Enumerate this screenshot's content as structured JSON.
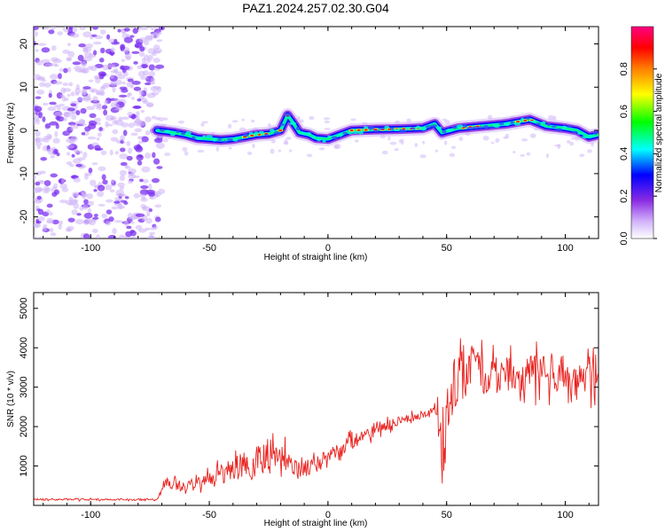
{
  "title": "PAZ1.2024.257.02.30.G04",
  "colors": {
    "snr_line": "#e8231f",
    "speckle": "#7b2ff0",
    "speckle_light": "#cdb3f7",
    "frame": "#000000"
  },
  "chart_data": [
    {
      "type": "heatmap",
      "title": "PAZ1.2024.257.02.30.G04",
      "xlabel": "Height of straight line (km)",
      "ylabel": "Frequency (Hz)",
      "xlim": [
        -124,
        114
      ],
      "ylim": [
        -25,
        24
      ],
      "x_ticks": [
        -100,
        -50,
        0,
        50,
        100
      ],
      "y_ticks": [
        -20,
        -10,
        0,
        10,
        20
      ],
      "colorbar": {
        "label": "Normalized spectral amplitude",
        "range": [
          0.0,
          1.0
        ],
        "ticks": [
          0.0,
          0.2,
          0.4,
          0.6,
          0.8
        ],
        "colormap": [
          "#ffffff",
          "#d2b4fa",
          "#8a2be2",
          "#0000ff",
          "#00ffff",
          "#00ff00",
          "#ffff00",
          "#ff8000",
          "#ff0000",
          "#ff0080"
        ]
      },
      "ridge_frequency": [
        {
          "x": -72,
          "y": 0.0
        },
        {
          "x": -65,
          "y": -0.5
        },
        {
          "x": -60,
          "y": -1.0
        },
        {
          "x": -55,
          "y": -1.8
        },
        {
          "x": -50,
          "y": -2.0
        },
        {
          "x": -45,
          "y": -2.2
        },
        {
          "x": -40,
          "y": -2.0
        },
        {
          "x": -35,
          "y": -1.5
        },
        {
          "x": -30,
          "y": -1.0
        },
        {
          "x": -25,
          "y": -0.8
        },
        {
          "x": -20,
          "y": 0.0
        },
        {
          "x": -17,
          "y": 3.5
        },
        {
          "x": -15,
          "y": 2.0
        },
        {
          "x": -12,
          "y": -0.5
        },
        {
          "x": -8,
          "y": -1.0
        },
        {
          "x": -5,
          "y": -1.8
        },
        {
          "x": 0,
          "y": -2.0
        },
        {
          "x": 5,
          "y": -1.0
        },
        {
          "x": 10,
          "y": 0.0
        },
        {
          "x": 20,
          "y": 0.2
        },
        {
          "x": 30,
          "y": 0.3
        },
        {
          "x": 40,
          "y": 0.5
        },
        {
          "x": 45,
          "y": 1.5
        },
        {
          "x": 48,
          "y": -0.5
        },
        {
          "x": 55,
          "y": 0.5
        },
        {
          "x": 65,
          "y": 1.0
        },
        {
          "x": 75,
          "y": 1.5
        },
        {
          "x": 85,
          "y": 2.5
        },
        {
          "x": 92,
          "y": 1.0
        },
        {
          "x": 100,
          "y": 0.5
        },
        {
          "x": 105,
          "y": 0.0
        },
        {
          "x": 110,
          "y": -1.5
        },
        {
          "x": 114,
          "y": -1.0
        }
      ],
      "noise_region_x": [
        -124,
        -72
      ],
      "notes": "Broad low-amplitude purple noise for x < -72 km; narrow high-amplitude ridge near 0 Hz elsewhere."
    },
    {
      "type": "line",
      "xlabel": "Height of straight line (km)",
      "ylabel": "SNR (10 * v/v)",
      "xlim": [
        -124,
        114
      ],
      "ylim": [
        0,
        5400
      ],
      "x_ticks": [
        -100,
        -50,
        0,
        50,
        100
      ],
      "y_ticks": [
        1000,
        2000,
        3000,
        4000,
        5000
      ],
      "series": [
        {
          "envelope": [
            {
              "x": -124,
              "mean": 150,
              "amp": 40
            },
            {
              "x": -72,
              "mean": 150,
              "amp": 40
            },
            {
              "x": -68,
              "mean": 600,
              "amp": 300
            },
            {
              "x": -60,
              "mean": 450,
              "amp": 250
            },
            {
              "x": -50,
              "mean": 700,
              "amp": 350
            },
            {
              "x": -40,
              "mean": 900,
              "amp": 600
            },
            {
              "x": -30,
              "mean": 1100,
              "amp": 800
            },
            {
              "x": -20,
              "mean": 1250,
              "amp": 600
            },
            {
              "x": -12,
              "mean": 1000,
              "amp": 500
            },
            {
              "x": -8,
              "mean": 900,
              "amp": 400
            },
            {
              "x": 0,
              "mean": 1300,
              "amp": 350
            },
            {
              "x": 10,
              "mean": 1600,
              "amp": 350
            },
            {
              "x": 20,
              "mean": 1900,
              "amp": 300
            },
            {
              "x": 30,
              "mean": 2150,
              "amp": 200
            },
            {
              "x": 40,
              "mean": 2300,
              "amp": 150
            },
            {
              "x": 45,
              "mean": 2400,
              "amp": 200
            },
            {
              "x": 47,
              "mean": 2000,
              "amp": 1000
            },
            {
              "x": 49,
              "mean": 1200,
              "amp": 1400
            },
            {
              "x": 51,
              "mean": 2800,
              "amp": 1400
            },
            {
              "x": 56,
              "mean": 3500,
              "amp": 1500
            },
            {
              "x": 65,
              "mean": 3300,
              "amp": 900
            },
            {
              "x": 80,
              "mean": 3300,
              "amp": 800
            },
            {
              "x": 95,
              "mean": 3400,
              "amp": 900
            },
            {
              "x": 105,
              "mean": 3200,
              "amp": 800
            },
            {
              "x": 114,
              "mean": 3400,
              "amp": 900
            }
          ]
        }
      ]
    }
  ]
}
